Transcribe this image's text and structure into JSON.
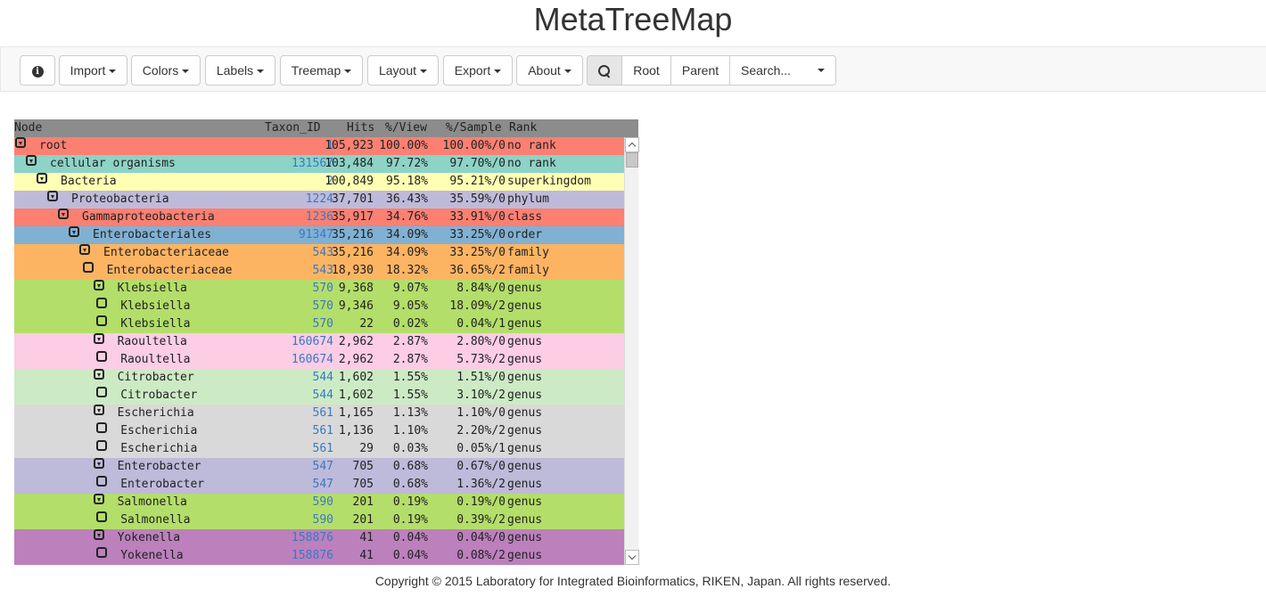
{
  "app": {
    "title": "MetaTreeMap"
  },
  "toolbar": {
    "import_label": "Import",
    "colors_label": "Colors",
    "labels_label": "Labels",
    "treemap_label": "Treemap",
    "layout_label": "Layout",
    "export_label": "Export",
    "about_label": "About",
    "root_label": "Root",
    "parent_label": "Parent",
    "search_placeholder": "Search..."
  },
  "table": {
    "headers": {
      "node": "Node",
      "taxon_id": "Taxon_ID",
      "hits": "Hits",
      "view": "%/View",
      "sample": "%/Sample",
      "rank": "Rank"
    },
    "rows": [
      {
        "depth": 0,
        "open": true,
        "node": "root",
        "taxon_id": "1",
        "hits": "105,923",
        "view": "100.00%",
        "sample": "100.00%/0",
        "rank": "no rank",
        "color": "#fb8072"
      },
      {
        "depth": 1,
        "open": true,
        "node": "cellular organisms",
        "taxon_id": "131567",
        "hits": "103,484",
        "view": "97.72%",
        "sample": "97.70%/0",
        "rank": "no rank",
        "color": "#8dd3c7"
      },
      {
        "depth": 2,
        "open": true,
        "node": "Bacteria",
        "taxon_id": "2",
        "hits": "100,849",
        "view": "95.18%",
        "sample": "95.21%/0",
        "rank": "superkingdom",
        "color": "#ffffb3"
      },
      {
        "depth": 3,
        "open": true,
        "node": "Proteobacteria",
        "taxon_id": "1224",
        "hits": "37,701",
        "view": "36.43%",
        "sample": "35.59%/0",
        "rank": "phylum",
        "color": "#bebada"
      },
      {
        "depth": 4,
        "open": true,
        "node": "Gammaproteobacteria",
        "taxon_id": "1236",
        "hits": "35,917",
        "view": "34.76%",
        "sample": "33.91%/0",
        "rank": "class",
        "color": "#fb8072"
      },
      {
        "depth": 5,
        "open": true,
        "node": "Enterobacteriales",
        "taxon_id": "91347",
        "hits": "35,216",
        "view": "34.09%",
        "sample": "33.25%/0",
        "rank": "order",
        "color": "#80b1d3"
      },
      {
        "depth": 6,
        "open": true,
        "node": "Enterobacteriaceae",
        "taxon_id": "543",
        "hits": "35,216",
        "view": "34.09%",
        "sample": "33.25%/0",
        "rank": "family",
        "color": "#fdb462"
      },
      {
        "depth": 6.3,
        "open": false,
        "node": "Enterobacteriaceae",
        "taxon_id": "543",
        "hits": "18,930",
        "view": "18.32%",
        "sample": "36.65%/2",
        "rank": "family",
        "color": "#fdb462"
      },
      {
        "depth": 7.3,
        "open": true,
        "node": "Klebsiella",
        "taxon_id": "570",
        "hits": "9,368",
        "view": "9.07%",
        "sample": "8.84%/0",
        "rank": "genus",
        "color": "#b3de69"
      },
      {
        "depth": 7.6,
        "open": false,
        "node": "Klebsiella",
        "taxon_id": "570",
        "hits": "9,346",
        "view": "9.05%",
        "sample": "18.09%/2",
        "rank": "genus",
        "color": "#b3de69"
      },
      {
        "depth": 7.6,
        "open": false,
        "node": "Klebsiella",
        "taxon_id": "570",
        "hits": "22",
        "view": "0.02%",
        "sample": "0.04%/1",
        "rank": "genus",
        "color": "#b3de69"
      },
      {
        "depth": 7.3,
        "open": true,
        "node": "Raoultella",
        "taxon_id": "160674",
        "hits": "2,962",
        "view": "2.87%",
        "sample": "2.80%/0",
        "rank": "genus",
        "color": "#fccde5"
      },
      {
        "depth": 7.6,
        "open": false,
        "node": "Raoultella",
        "taxon_id": "160674",
        "hits": "2,962",
        "view": "2.87%",
        "sample": "5.73%/2",
        "rank": "genus",
        "color": "#fccde5"
      },
      {
        "depth": 7.3,
        "open": true,
        "node": "Citrobacter",
        "taxon_id": "544",
        "hits": "1,602",
        "view": "1.55%",
        "sample": "1.51%/0",
        "rank": "genus",
        "color": "#ccebc5"
      },
      {
        "depth": 7.6,
        "open": false,
        "node": "Citrobacter",
        "taxon_id": "544",
        "hits": "1,602",
        "view": "1.55%",
        "sample": "3.10%/2",
        "rank": "genus",
        "color": "#ccebc5"
      },
      {
        "depth": 7.3,
        "open": true,
        "node": "Escherichia",
        "taxon_id": "561",
        "hits": "1,165",
        "view": "1.13%",
        "sample": "1.10%/0",
        "rank": "genus",
        "color": "#d9d9d9"
      },
      {
        "depth": 7.6,
        "open": false,
        "node": "Escherichia",
        "taxon_id": "561",
        "hits": "1,136",
        "view": "1.10%",
        "sample": "2.20%/2",
        "rank": "genus",
        "color": "#d9d9d9"
      },
      {
        "depth": 7.6,
        "open": false,
        "node": "Escherichia",
        "taxon_id": "561",
        "hits": "29",
        "view": "0.03%",
        "sample": "0.05%/1",
        "rank": "genus",
        "color": "#d9d9d9"
      },
      {
        "depth": 7.3,
        "open": true,
        "node": "Enterobacter",
        "taxon_id": "547",
        "hits": "705",
        "view": "0.68%",
        "sample": "0.67%/0",
        "rank": "genus",
        "color": "#bebada"
      },
      {
        "depth": 7.6,
        "open": false,
        "node": "Enterobacter",
        "taxon_id": "547",
        "hits": "705",
        "view": "0.68%",
        "sample": "1.36%/2",
        "rank": "genus",
        "color": "#bebada"
      },
      {
        "depth": 7.3,
        "open": true,
        "node": "Salmonella",
        "taxon_id": "590",
        "hits": "201",
        "view": "0.19%",
        "sample": "0.19%/0",
        "rank": "genus",
        "color": "#b3de69"
      },
      {
        "depth": 7.6,
        "open": false,
        "node": "Salmonella",
        "taxon_id": "590",
        "hits": "201",
        "view": "0.19%",
        "sample": "0.39%/2",
        "rank": "genus",
        "color": "#b3de69"
      },
      {
        "depth": 7.3,
        "open": true,
        "node": "Yokenella",
        "taxon_id": "158876",
        "hits": "41",
        "view": "0.04%",
        "sample": "0.04%/0",
        "rank": "genus",
        "color": "#bc80bd"
      },
      {
        "depth": 7.6,
        "open": false,
        "node": "Yokenella",
        "taxon_id": "158876",
        "hits": "41",
        "view": "0.04%",
        "sample": "0.08%/2",
        "rank": "genus",
        "color": "#bc80bd"
      }
    ]
  },
  "footer": {
    "copyright": "Copyright © 2015 Laboratory for Integrated Bioinformatics, RIKEN, Japan. All rights reserved."
  }
}
